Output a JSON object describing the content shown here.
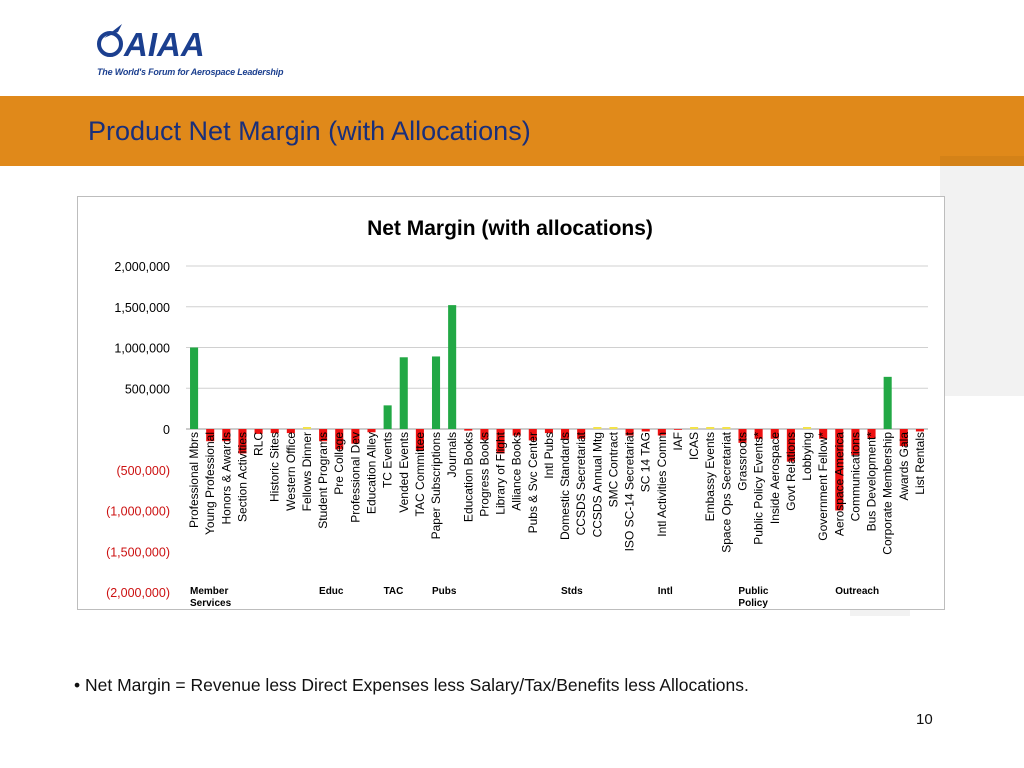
{
  "logo": {
    "text": "AIAA",
    "tagline": "The World's Forum for Aerospace Leadership"
  },
  "slide": {
    "title": "Product Net Margin (with Allocations)",
    "bullet": "• Net Margin = Revenue less Direct Expenses less Salary/Tax/Benefits less Allocations.",
    "page_number": "10"
  },
  "colors": {
    "banner": "#e0891a",
    "title": "#1a2f7a",
    "positive": "#22a845",
    "negative": "#ee1111",
    "near_zero": "#f2e24a",
    "negative_ticks": "#cc1111"
  },
  "chart_data": {
    "type": "bar",
    "title": "Net Margin (with allocations)",
    "xlabel": "",
    "ylabel": "",
    "ylim": [
      -2000000,
      2000000
    ],
    "yticks": [
      2000000,
      1500000,
      1000000,
      500000,
      0,
      -500000,
      -1000000,
      -1500000,
      -2000000
    ],
    "ytick_labels": [
      "2,000,000",
      "1,500,000",
      "1,000,000",
      "500,000",
      "0",
      "(500,000)",
      "(1,000,000)",
      "(1,500,000)",
      "(2,000,000)"
    ],
    "grid": true,
    "legend": "none",
    "categories": [
      "Professional Mbrs",
      "Young Professional",
      "Honors & Awards",
      "Section Activities",
      "RLC",
      "Historic Sites",
      "Western Office",
      "Fellows Dinner",
      "Student Programs",
      "Pre College",
      "Professional Dev",
      "Education Alley",
      "TC Events",
      "Vended Events",
      "TAC Committee",
      "Paper Subscriptions",
      "Journals",
      "Education Books",
      "Progress Books",
      "Library of Flight",
      "Alliance Books",
      "Pubs & Svc Center",
      "Intl Pubs",
      "Domestic Standards",
      "CCSDS Secretariat",
      "CCSDS Annual Mtg",
      "SMC Contract",
      "ISO SC-14 Secretariat",
      "SC 14 TAG",
      "Intl Activities Comm",
      "IAF",
      "ICAS",
      "Embassy Events",
      "Space Ops Secretariat",
      "Grassroots",
      "Public Policy Events*",
      "Inside Aerospace",
      "Govt Relations",
      "Lobbying",
      "Government Fellow*",
      "Aerospace America",
      "Communications",
      "Bus Development*",
      "Corporate Membership",
      "Awards Gala",
      "List Rentals"
    ],
    "values": [
      1000000,
      -150000,
      -150000,
      -300000,
      -60000,
      -50000,
      -50000,
      0,
      -150000,
      -250000,
      -180000,
      -40000,
      290000,
      880000,
      -270000,
      890000,
      1520000,
      -20000,
      -130000,
      -300000,
      -80000,
      -140000,
      -50000,
      -120000,
      -120000,
      0,
      0,
      -80000,
      -30000,
      -80000,
      -10000,
      0,
      0,
      0,
      -170000,
      -120000,
      -120000,
      -400000,
      0,
      -120000,
      -1000000,
      -320000,
      -120000,
      640000,
      -210000,
      -30000
    ],
    "groups": [
      {
        "label": "Member Services",
        "first": 0,
        "last": 7
      },
      {
        "label": "Educ",
        "first": 8,
        "last": 11
      },
      {
        "label": "TAC",
        "first": 12,
        "last": 14
      },
      {
        "label": "Pubs",
        "first": 15,
        "last": 22
      },
      {
        "label": "Stds",
        "first": 23,
        "last": 28
      },
      {
        "label": "Intl",
        "first": 29,
        "last": 33
      },
      {
        "label": "Public Policy",
        "first": 34,
        "last": 39
      },
      {
        "label": "Outreach",
        "first": 40,
        "last": 45
      }
    ]
  }
}
